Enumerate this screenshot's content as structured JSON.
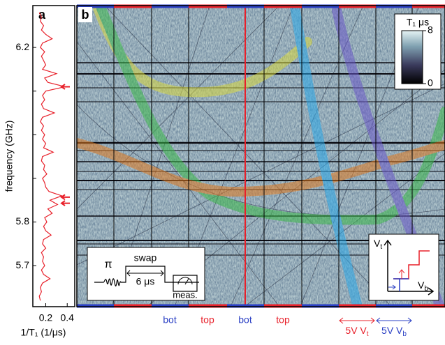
{
  "panel_a": {
    "label": "a",
    "ylabel": "frequency (GHz)",
    "xlabel": "1/T₁ (1/μs)",
    "ylim": [
      5.606,
      6.296
    ],
    "yticks": [
      5.7,
      5.8,
      6.2
    ],
    "yminorticks": [
      5.9,
      6.0,
      6.1
    ],
    "xlim": [
      0.08,
      0.47
    ],
    "xticks": [
      0.2,
      0.4
    ],
    "color": "#e8202a",
    "frequency": [
      6.28,
      6.27,
      6.26,
      6.25,
      6.24,
      6.23,
      6.22,
      6.21,
      6.2,
      6.19,
      6.18,
      6.17,
      6.16,
      6.15,
      6.14,
      6.13,
      6.12,
      6.11,
      6.1,
      6.09,
      6.08,
      6.07,
      6.06,
      6.05,
      6.04,
      6.03,
      6.02,
      6.01,
      6.0,
      5.99,
      5.98,
      5.97,
      5.96,
      5.95,
      5.94,
      5.93,
      5.92,
      5.91,
      5.9,
      5.89,
      5.88,
      5.87,
      5.86,
      5.85,
      5.84,
      5.83,
      5.82,
      5.81,
      5.8,
      5.79,
      5.78,
      5.77,
      5.76,
      5.75,
      5.74,
      5.73,
      5.72,
      5.71,
      5.7,
      5.69,
      5.68,
      5.67,
      5.66,
      5.65,
      5.64,
      5.63,
      5.62
    ],
    "rate": [
      0.14,
      0.16,
      0.15,
      0.18,
      0.16,
      0.2,
      0.26,
      0.17,
      0.15,
      0.19,
      0.16,
      0.18,
      0.2,
      0.17,
      0.3,
      0.19,
      0.22,
      0.38,
      0.2,
      0.17,
      0.19,
      0.16,
      0.18,
      0.28,
      0.17,
      0.15,
      0.18,
      0.16,
      0.19,
      0.17,
      0.2,
      0.18,
      0.27,
      0.17,
      0.16,
      0.19,
      0.18,
      0.21,
      0.17,
      0.19,
      0.2,
      0.23,
      0.35,
      0.24,
      0.31,
      0.22,
      0.26,
      0.19,
      0.21,
      0.18,
      0.2,
      0.25,
      0.18,
      0.17,
      0.2,
      0.16,
      0.18,
      0.17,
      0.19,
      0.16,
      0.18,
      0.24,
      0.17,
      0.15,
      0.16,
      0.14,
      0.15
    ],
    "arrow_frequencies": [
      6.11,
      5.857,
      5.843
    ]
  },
  "panel_b": {
    "label": "b",
    "colorbar": {
      "title": "T₁ μs",
      "lim": [
        0,
        8
      ],
      "ticks": [
        0,
        8
      ]
    },
    "bottom_labels": [
      "bot",
      "top",
      "bot",
      "top"
    ],
    "sweep_t": {
      "text": "5V V",
      "sub": "t"
    },
    "sweep_b": {
      "text": "5V V",
      "sub": "b"
    },
    "pulse": {
      "pi": "π",
      "swap": "swap",
      "duration": "6 μs",
      "measure": "meas."
    },
    "axes": {
      "vt": {
        "text": "V",
        "sub": "t"
      },
      "vb": {
        "text": "V",
        "sub": "b"
      }
    }
  }
}
